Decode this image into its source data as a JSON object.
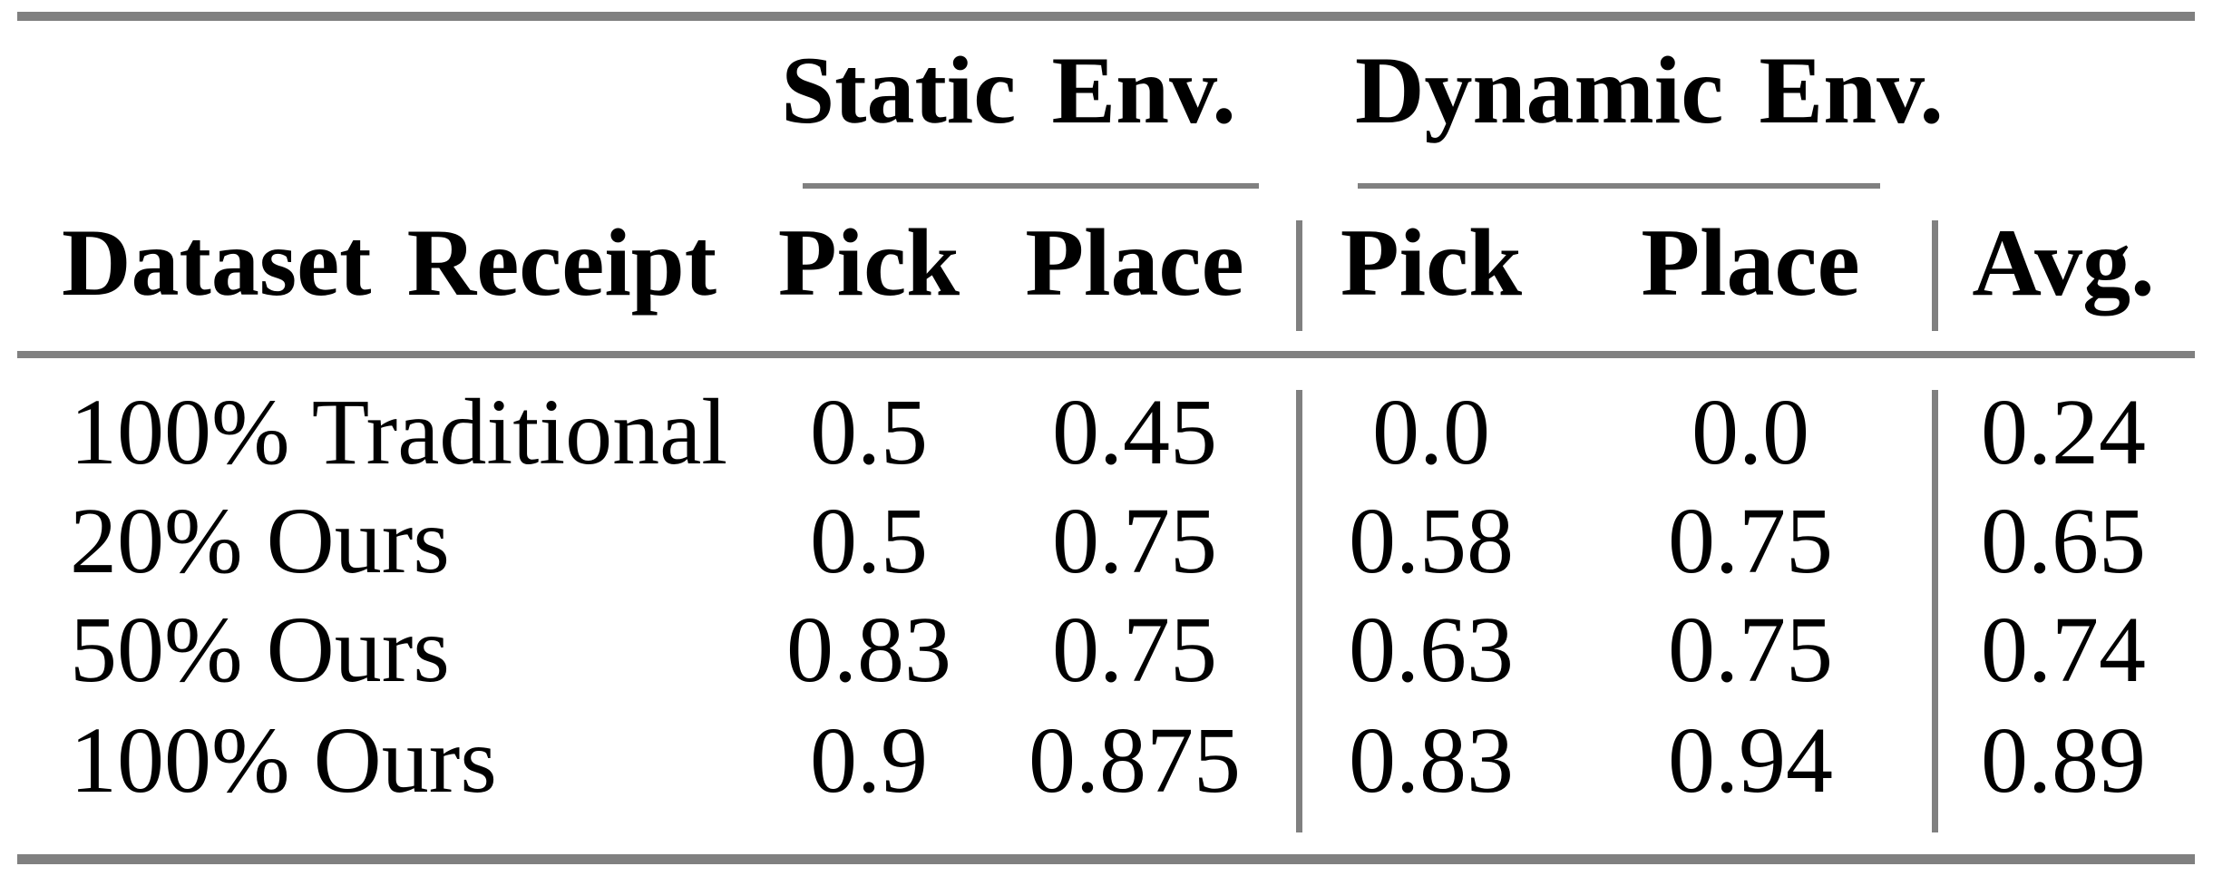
{
  "style": {
    "rule_color": "#808080",
    "text_color": "#000000",
    "background": "#ffffff"
  },
  "table": {
    "column_groups": [
      {
        "label": "Static Env."
      },
      {
        "label": "Dynamic Env."
      }
    ],
    "headers": {
      "row_label": "Dataset Receipt",
      "static_pick": "Pick",
      "static_place": "Place",
      "dynamic_pick": "Pick",
      "dynamic_place": "Place",
      "avg": "Avg."
    },
    "rows": [
      {
        "label": "100% Traditional",
        "static_pick": "0.5",
        "static_place": "0.45",
        "dynamic_pick": "0.0",
        "dynamic_place": "0.0",
        "avg": "0.24"
      },
      {
        "label": "20% Ours",
        "static_pick": "0.5",
        "static_place": "0.75",
        "dynamic_pick": "0.58",
        "dynamic_place": "0.75",
        "avg": "0.65"
      },
      {
        "label": "50% Ours",
        "static_pick": "0.83",
        "static_place": "0.75",
        "dynamic_pick": "0.63",
        "dynamic_place": "0.75",
        "avg": "0.74"
      },
      {
        "label": "100% Ours",
        "static_pick": "0.9",
        "static_place": "0.875",
        "dynamic_pick": "0.83",
        "dynamic_place": "0.94",
        "avg": "0.89"
      }
    ]
  }
}
